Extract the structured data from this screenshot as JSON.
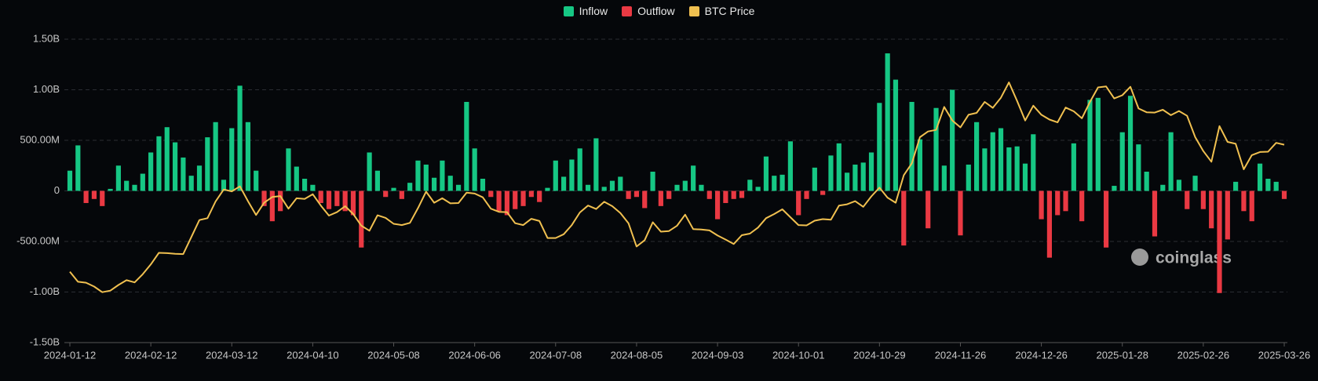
{
  "chart_data": {
    "type": "bar",
    "categories": [
      "2024-01-12",
      null,
      null,
      null,
      null,
      null,
      null,
      null,
      null,
      null,
      "2024-02-12",
      null,
      null,
      null,
      null,
      null,
      null,
      null,
      null,
      null,
      "2024-03-12",
      null,
      null,
      null,
      null,
      null,
      null,
      null,
      null,
      null,
      "2024-04-10",
      null,
      null,
      null,
      null,
      null,
      null,
      null,
      null,
      null,
      "2024-05-08",
      null,
      null,
      null,
      null,
      null,
      null,
      null,
      null,
      null,
      "2024-06-06",
      null,
      null,
      null,
      null,
      null,
      null,
      null,
      null,
      null,
      "2024-07-08",
      null,
      null,
      null,
      null,
      null,
      null,
      null,
      null,
      null,
      "2024-08-05",
      null,
      null,
      null,
      null,
      null,
      null,
      null,
      null,
      null,
      "2024-09-03",
      null,
      null,
      null,
      null,
      null,
      null,
      null,
      null,
      null,
      "2024-10-01",
      null,
      null,
      null,
      null,
      null,
      null,
      null,
      null,
      null,
      "2024-10-29",
      null,
      null,
      null,
      null,
      null,
      null,
      null,
      null,
      null,
      "2024-11-26",
      null,
      null,
      null,
      null,
      null,
      null,
      null,
      null,
      null,
      "2024-12-26",
      null,
      null,
      null,
      null,
      null,
      null,
      null,
      null,
      null,
      "2025-01-28",
      null,
      null,
      null,
      null,
      null,
      null,
      null,
      null,
      null,
      "2025-02-26",
      null,
      null,
      null,
      null,
      null,
      null,
      null,
      null,
      null,
      "2025-03-26"
    ],
    "series": [
      {
        "name": "Inflow",
        "color": "#16c784",
        "values": [
          200,
          450,
          null,
          null,
          null,
          20,
          250,
          100,
          60,
          170,
          380,
          540,
          630,
          480,
          330,
          150,
          250,
          530,
          680,
          110,
          620,
          1040,
          680,
          200,
          null,
          null,
          null,
          420,
          240,
          120,
          60,
          null,
          null,
          null,
          null,
          null,
          null,
          380,
          200,
          null,
          30,
          null,
          80,
          300,
          260,
          130,
          300,
          150,
          60,
          880,
          420,
          120,
          null,
          null,
          null,
          null,
          null,
          null,
          null,
          30,
          300,
          140,
          310,
          420,
          60,
          520,
          40,
          100,
          140,
          null,
          null,
          null,
          190,
          null,
          null,
          60,
          100,
          250,
          60,
          null,
          null,
          null,
          null,
          null,
          110,
          40,
          340,
          150,
          160,
          490,
          null,
          null,
          230,
          null,
          350,
          470,
          180,
          260,
          280,
          380,
          870,
          1360,
          1100,
          null,
          880,
          510,
          null,
          820,
          250,
          1000,
          null,
          260,
          680,
          420,
          580,
          620,
          430,
          440,
          270,
          560,
          null,
          null,
          null,
          null,
          470,
          null,
          900,
          920,
          null,
          50,
          580,
          940,
          460,
          190,
          null,
          60,
          580,
          110,
          null,
          150,
          null,
          null,
          null,
          null,
          90,
          null,
          null,
          270,
          120,
          90,
          null
        ]
      },
      {
        "name": "Outflow",
        "color": "#ea3943",
        "values": [
          null,
          null,
          -120,
          -80,
          -150,
          null,
          null,
          null,
          null,
          null,
          null,
          null,
          null,
          null,
          null,
          null,
          null,
          null,
          null,
          null,
          null,
          null,
          null,
          null,
          -150,
          -300,
          -200,
          null,
          null,
          null,
          null,
          -120,
          -180,
          -150,
          -200,
          -240,
          -560,
          null,
          null,
          -60,
          null,
          -80,
          null,
          null,
          null,
          null,
          null,
          null,
          null,
          null,
          null,
          null,
          -60,
          -200,
          -240,
          -180,
          -150,
          -60,
          -110,
          null,
          null,
          null,
          null,
          null,
          null,
          null,
          null,
          null,
          null,
          -80,
          -60,
          -170,
          null,
          -150,
          -80,
          null,
          null,
          null,
          null,
          -80,
          -280,
          -120,
          -80,
          -70,
          null,
          null,
          null,
          null,
          null,
          null,
          -240,
          -80,
          null,
          -40,
          null,
          null,
          null,
          null,
          null,
          null,
          null,
          null,
          null,
          -540,
          null,
          null,
          -370,
          null,
          null,
          null,
          -440,
          null,
          null,
          null,
          null,
          null,
          null,
          null,
          null,
          null,
          -280,
          -660,
          -240,
          -200,
          null,
          -300,
          null,
          null,
          -560,
          null,
          null,
          null,
          null,
          null,
          -450,
          null,
          null,
          null,
          -180,
          null,
          -180,
          -370,
          -1010,
          -480,
          null,
          -200,
          -300,
          null,
          null,
          null,
          -80
        ]
      },
      {
        "name": "BTC Price",
        "color": "#f0c050",
        "type": "line",
        "axis": "y2",
        "values": [
          46000,
          42800,
          42500,
          41300,
          39500,
          40000,
          41800,
          43300,
          42600,
          45200,
          48300,
          52000,
          51900,
          51700,
          51600,
          57000,
          62400,
          63000,
          68300,
          72100,
          71500,
          73100,
          68400,
          64000,
          67900,
          69700,
          70000,
          66000,
          69300,
          69100,
          70600,
          67000,
          63800,
          64900,
          66800,
          64300,
          60600,
          59000,
          63900,
          63100,
          61200,
          60800,
          61500,
          66200,
          71400,
          67900,
          69300,
          67700,
          67800,
          71100,
          70800,
          69600,
          66000,
          65000,
          64900,
          61400,
          60800,
          62800,
          62100,
          56700,
          56700,
          57900,
          60800,
          64800,
          67000,
          65900,
          68200,
          66800,
          64600,
          61400,
          54000,
          56000,
          61700,
          58700,
          58900,
          60600,
          64100,
          59500,
          59400,
          59100,
          57500,
          56200,
          54800,
          57600,
          58100,
          60000,
          63000,
          64300,
          65800,
          63300,
          60800,
          60700,
          62200,
          62700,
          62500,
          67000,
          67400,
          68400,
          66600,
          69900,
          72700,
          69500,
          67900,
          76600,
          80400,
          88700,
          90500,
          91000,
          98300,
          94000,
          91800,
          95800,
          96400,
          99900,
          98000,
          101200,
          106100,
          100200,
          94000,
          98700,
          95800,
          94300,
          93400,
          98100,
          96900,
          94700,
          99900,
          104500,
          104800,
          101000,
          102000,
          104700,
          97800,
          96600,
          96500,
          97400,
          95700,
          97000,
          95500,
          88700,
          84300,
          80900,
          92200,
          87200,
          86600,
          78500,
          83000,
          84000,
          84100,
          86900,
          86300
        ]
      }
    ],
    "ylim": [
      -1500,
      1500
    ],
    "yticks": [
      {
        "value": 1500,
        "label": "1.50B"
      },
      {
        "value": 1000,
        "label": "1.00B"
      },
      {
        "value": 500,
        "label": "500.00M"
      },
      0,
      {
        "value": -500,
        "label": "-500.00M"
      },
      {
        "value": -1000,
        "label": "-1.00B"
      },
      {
        "value": -1500,
        "label": "-1.50B"
      }
    ],
    "y2lim": [
      23500,
      119800
    ],
    "grid": true,
    "legend": "top",
    "watermark": "coinglass"
  }
}
